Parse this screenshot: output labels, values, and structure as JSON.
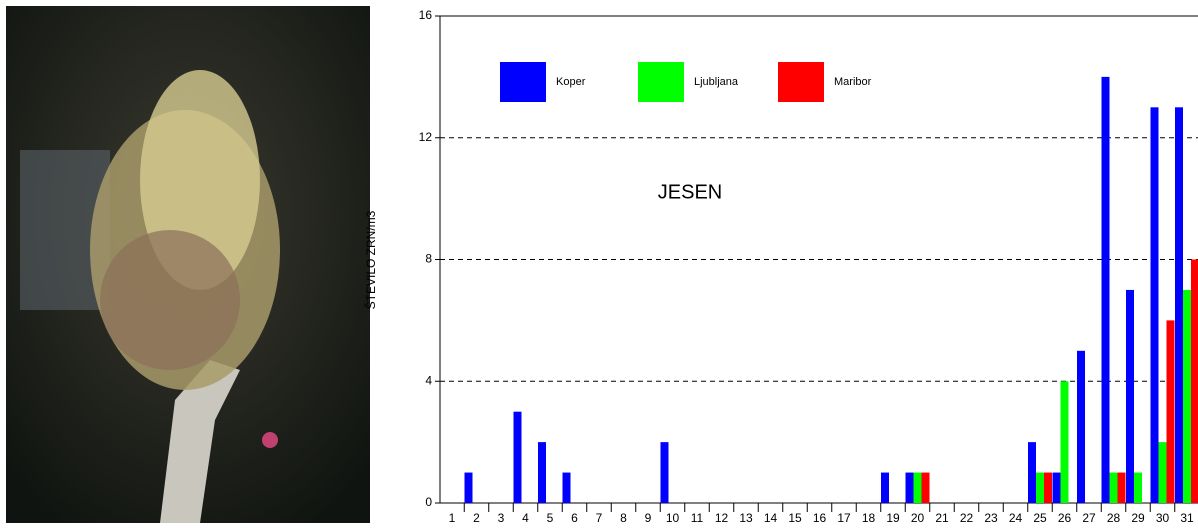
{
  "chart_data": {
    "type": "bar",
    "ylabel": "ŠTEVILO ZRN/m3",
    "annotation": "JESEN",
    "categories": [
      "1",
      "2",
      "3",
      "4",
      "5",
      "6",
      "7",
      "8",
      "9",
      "10",
      "11",
      "12",
      "13",
      "14",
      "15",
      "16",
      "17",
      "18",
      "19",
      "20",
      "21",
      "22",
      "23",
      "24",
      "25",
      "26",
      "27",
      "28",
      "29",
      "30",
      "31"
    ],
    "series": [
      {
        "name": "Koper",
        "color": "#0000ff",
        "values": [
          0,
          1,
          0,
          3,
          2,
          1,
          0,
          0,
          0,
          2,
          0,
          0,
          0,
          0,
          0,
          0,
          0,
          0,
          1,
          1,
          0,
          0,
          0,
          0,
          2,
          1,
          5,
          14,
          7,
          13,
          13
        ]
      },
      {
        "name": "Ljubljana",
        "color": "#00ff00",
        "values": [
          0,
          0,
          0,
          0,
          0,
          0,
          0,
          0,
          0,
          0,
          0,
          0,
          0,
          0,
          0,
          0,
          0,
          0,
          0,
          1,
          0,
          0,
          0,
          0,
          1,
          4,
          0,
          1,
          1,
          2,
          7
        ]
      },
      {
        "name": "Maribor",
        "color": "#ff0000",
        "values": [
          0,
          0,
          0,
          0,
          0,
          0,
          0,
          0,
          0,
          0,
          0,
          0,
          0,
          0,
          0,
          0,
          0,
          0,
          0,
          1,
          0,
          0,
          0,
          0,
          1,
          0,
          0,
          1,
          0,
          6,
          8
        ]
      }
    ],
    "ylim": [
      0,
      16
    ],
    "yticks": [
      0,
      4,
      8,
      12,
      16
    ],
    "grid": true
  }
}
